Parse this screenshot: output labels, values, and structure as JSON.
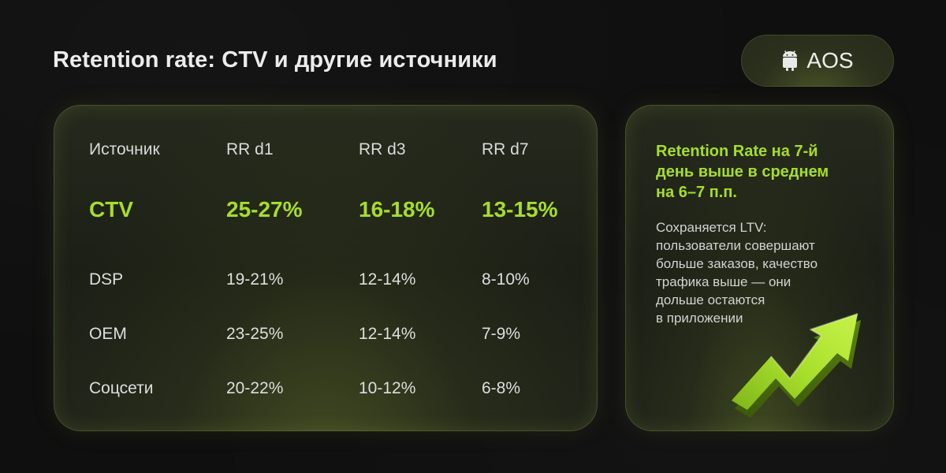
{
  "header": {
    "title": "Retention rate: CTV и другие источники",
    "platform": {
      "icon": "android-icon",
      "label": "AOS"
    }
  },
  "table": {
    "columns": [
      "Источник",
      "RR d1",
      "RR d3",
      "RR d7"
    ],
    "rows": [
      {
        "source": "CTV",
        "d1": "25-27%",
        "d3": "16-18%",
        "d7": "13-15%",
        "highlight": true
      },
      {
        "source": "DSP",
        "d1": "19-21%",
        "d3": "12-14%",
        "d7": "8-10%",
        "highlight": false
      },
      {
        "source": "OEM",
        "d1": "23-25%",
        "d3": "12-14%",
        "d7": "7-9%",
        "highlight": false
      },
      {
        "source": "Соцсети",
        "d1": "20-22%",
        "d3": "10-12%",
        "d7": "6-8%",
        "highlight": false
      }
    ]
  },
  "insight": {
    "heading_lines": [
      "Retention Rate на 7-й",
      "день выше в среднем",
      "на 6–7 п.п."
    ],
    "body_lines": [
      "Сохраняется LTV:",
      "пользователи совершают",
      "больше заказов, качество",
      "трафика выше — они",
      "дольше остаются",
      "в приложении"
    ],
    "icon": "trend-up-arrow-icon"
  },
  "colors": {
    "background": "#0f0f0f",
    "accent": "#a6dd2c",
    "text": "#e9e9e9"
  }
}
